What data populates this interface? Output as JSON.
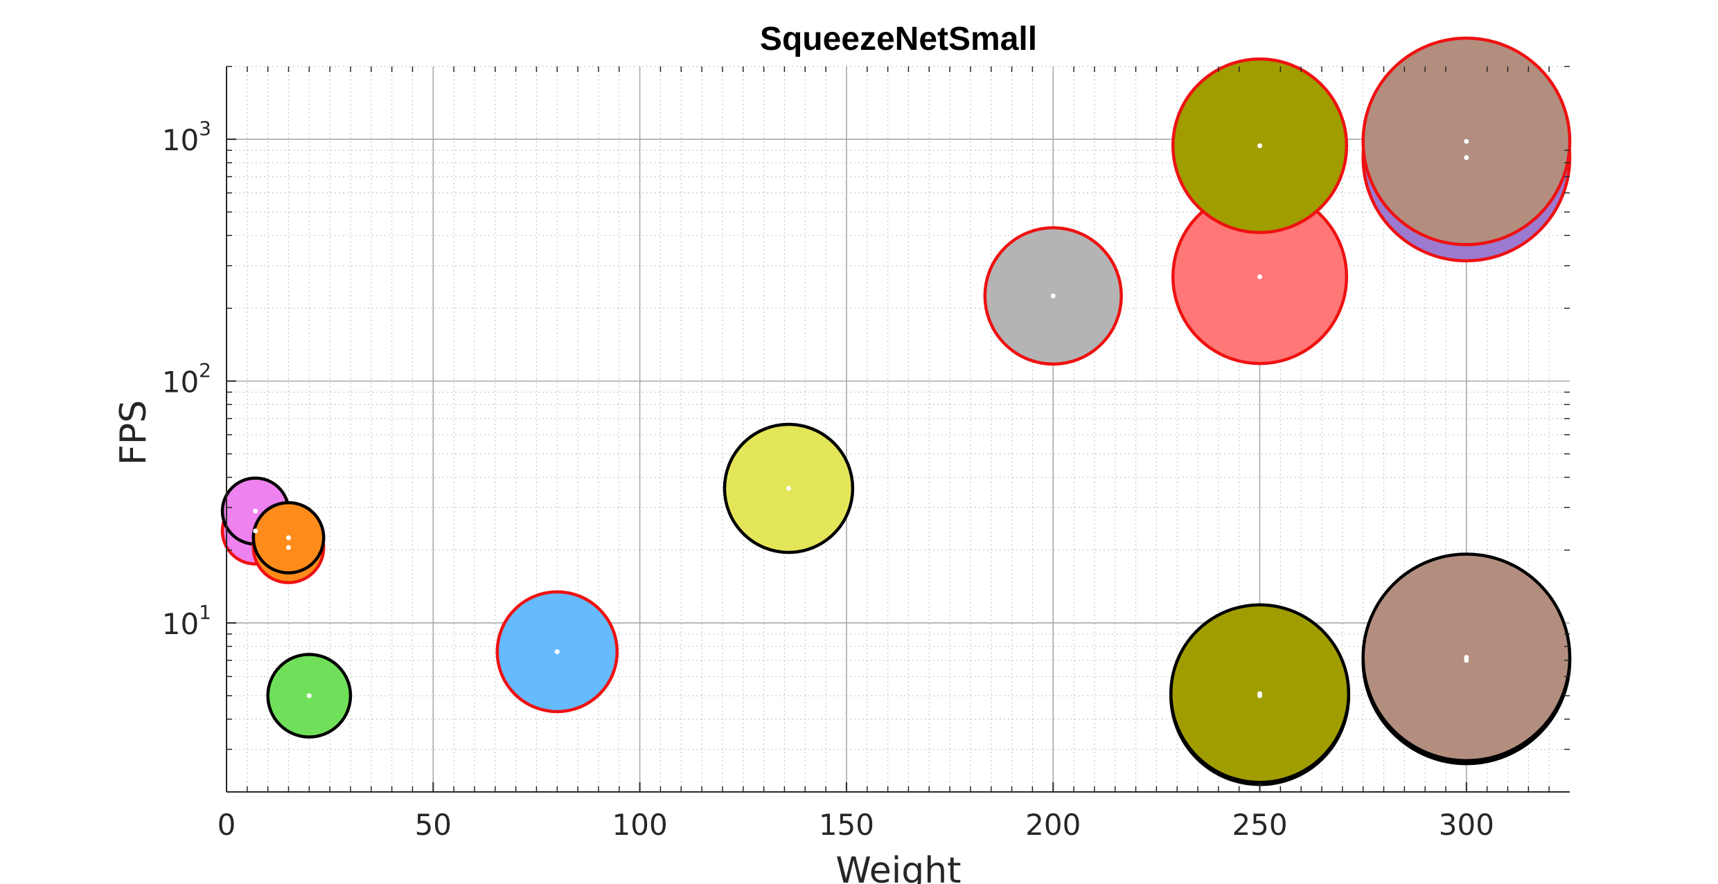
{
  "chart_data": {
    "type": "scatter",
    "title": "SqueezeNetSmall",
    "xlabel": "Weight",
    "ylabel": "FPS",
    "xlim": [
      0,
      325
    ],
    "ylim": [
      2,
      2000
    ],
    "yscale": "log",
    "grid": true,
    "minor_grid": true,
    "x_ticks": [
      0,
      50,
      100,
      150,
      200,
      250,
      300
    ],
    "y_ticks": [
      {
        "value": 10,
        "base": "10",
        "exp": "1"
      },
      {
        "value": 100,
        "base": "10",
        "exp": "2"
      },
      {
        "value": 1000,
        "base": "10",
        "exp": "3"
      }
    ],
    "points": [
      {
        "x": 7,
        "y": 24,
        "size": 8.0,
        "fill": "#ee82ee",
        "edge": "#ee1111"
      },
      {
        "x": 7,
        "y": 29,
        "size": 8.0,
        "fill": "#ee82ee",
        "edge": "#000000"
      },
      {
        "x": 15,
        "y": 20.5,
        "size": 8.5,
        "fill": "#ff8c1a",
        "edge": "#ee1111"
      },
      {
        "x": 15,
        "y": 22.5,
        "size": 8.5,
        "fill": "#ff8c1a",
        "edge": "#000000"
      },
      {
        "x": 20,
        "y": 5,
        "size": 10.0,
        "fill": "#70e05a",
        "edge": "#000000"
      },
      {
        "x": 80,
        "y": 7.6,
        "size": 14.5,
        "fill": "#66bbff",
        "edge": "#ee1111"
      },
      {
        "x": 136,
        "y": 36,
        "size": 15.5,
        "fill": "#e4e65a",
        "edge": "#000000"
      },
      {
        "x": 200,
        "y": 225,
        "size": 16.5,
        "fill": "#b4b4b4",
        "edge": "#ee1111"
      },
      {
        "x": 250,
        "y": 270,
        "size": 21.0,
        "fill": "#ff7777",
        "edge": "#ee1111"
      },
      {
        "x": 250,
        "y": 940,
        "size": 21.0,
        "fill": "#a09d00",
        "edge": "#ee1111"
      },
      {
        "x": 250,
        "y": 5.0,
        "size": 21.5,
        "fill": "#a09d00",
        "edge": "#000000"
      },
      {
        "x": 250,
        "y": 5.1,
        "size": 21.5,
        "fill": "#a09d00",
        "edge": "#000000"
      },
      {
        "x": 300,
        "y": 840,
        "size": 25.0,
        "fill": "#9b7ad0",
        "edge": "#ee1111"
      },
      {
        "x": 300,
        "y": 980,
        "size": 25.0,
        "fill": "#b38e7f",
        "edge": "#ee1111"
      },
      {
        "x": 300,
        "y": 7.0,
        "size": 25.0,
        "fill": "#b38e7f",
        "edge": "#000000"
      },
      {
        "x": 300,
        "y": 7.2,
        "size": 25.0,
        "fill": "#b38e7f",
        "edge": "#000000"
      }
    ]
  }
}
